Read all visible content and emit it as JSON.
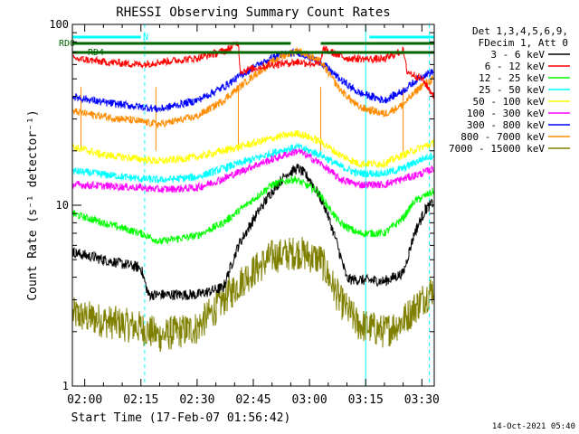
{
  "chart_data": {
    "type": "line",
    "title": "RHESSI Observing Summary Count Rates",
    "xlabel": "Start Time (17-Feb-07 01:56:42)",
    "ylabel": "Count Rate (s⁻¹ detector⁻¹)",
    "x_tick_labels": [
      "02:00",
      "02:15",
      "02:30",
      "02:45",
      "03:00",
      "03:15",
      "03:30"
    ],
    "x_range_minutes": [
      116.7,
      213.3
    ],
    "y_scale": "log",
    "ylim": [
      1,
      100
    ],
    "y_tick_labels": [
      "1",
      "10",
      "100"
    ],
    "footer_timestamp": "14-Oct-2021 05:40",
    "legend_header": [
      "Det 1,3,4,5,6,9,",
      "FDecim 1, Att 0"
    ],
    "flags": {
      "rd0_label": "RD0",
      "rd4_label": "RD4",
      "n_label": "N",
      "rd0_color": "#006600",
      "n_color": "#00ffff",
      "n_intervals": [
        [
          116.7,
          135
        ],
        [
          196,
          213.3
        ]
      ],
      "rd0_intervals": [
        [
          116.7,
          175
        ],
        [
          183,
          213.3
        ]
      ],
      "rd4_intervals": [
        [
          116.7,
          213.3
        ]
      ]
    },
    "boundaries": {
      "solid_cyan_minutes": [
        116.7,
        195
      ],
      "dashed_cyan_minutes": [
        136,
        212
      ],
      "solid_orange_minutes": [
        119,
        139,
        161,
        183,
        205
      ]
    },
    "series": [
      {
        "name": "3 - 6 keV",
        "color": "#000000",
        "control": [
          [
            116.7,
            5.5
          ],
          [
            125,
            5.0
          ],
          [
            135,
            4.5
          ],
          [
            137,
            3.2
          ],
          [
            150,
            3.2
          ],
          [
            157,
            3.5
          ],
          [
            161,
            6.0
          ],
          [
            166,
            9.0
          ],
          [
            170,
            12
          ],
          [
            174,
            15
          ],
          [
            177,
            16
          ],
          [
            180,
            14
          ],
          [
            184,
            10
          ],
          [
            187,
            6.5
          ],
          [
            190,
            3.9
          ],
          [
            200,
            3.8
          ],
          [
            205,
            4.2
          ],
          [
            208,
            7.0
          ],
          [
            211,
            9.5
          ],
          [
            213.3,
            10.5
          ]
        ]
      },
      {
        "name": "6 - 12 keV",
        "color": "#ff0000",
        "control": [
          [
            116.7,
            65
          ],
          [
            125,
            62
          ],
          [
            135,
            60
          ],
          [
            140,
            62
          ],
          [
            150,
            65
          ],
          [
            158,
            72
          ],
          [
            161,
            80
          ],
          [
            161.5,
            55
          ],
          [
            170,
            60
          ],
          [
            177,
            62
          ],
          [
            183,
            60
          ],
          [
            183.5,
            73
          ],
          [
            190,
            65
          ],
          [
            200,
            64
          ],
          [
            205,
            72
          ],
          [
            206,
            55
          ],
          [
            210,
            50
          ],
          [
            213.3,
            40
          ]
        ]
      },
      {
        "name": "12 - 25 keV",
        "color": "#00ff00",
        "control": [
          [
            116.7,
            9.0
          ],
          [
            125,
            8.0
          ],
          [
            135,
            7.0
          ],
          [
            140,
            6.3
          ],
          [
            150,
            6.8
          ],
          [
            157,
            8.0
          ],
          [
            163,
            10
          ],
          [
            170,
            13
          ],
          [
            176,
            14
          ],
          [
            182,
            12
          ],
          [
            188,
            8.0
          ],
          [
            193,
            7.0
          ],
          [
            200,
            7.0
          ],
          [
            205,
            8.5
          ],
          [
            208,
            10.5
          ],
          [
            213.3,
            12
          ]
        ]
      },
      {
        "name": "25 - 50 keV",
        "color": "#00ffff",
        "control": [
          [
            116.7,
            15.5
          ],
          [
            125,
            14.8
          ],
          [
            135,
            14.0
          ],
          [
            140,
            13.8
          ],
          [
            150,
            14.3
          ],
          [
            157,
            16
          ],
          [
            165,
            18
          ],
          [
            172,
            20
          ],
          [
            177,
            21
          ],
          [
            183,
            19
          ],
          [
            188,
            16.5
          ],
          [
            193,
            15
          ],
          [
            200,
            15
          ],
          [
            205,
            16
          ],
          [
            210,
            18
          ],
          [
            213.3,
            19
          ]
        ]
      },
      {
        "name": "50 - 100 keV",
        "color": "#ffff00",
        "shade": "#cccc00",
        "control": [
          [
            116.7,
            21
          ],
          [
            125,
            19
          ],
          [
            135,
            18
          ],
          [
            140,
            17.5
          ],
          [
            150,
            18.5
          ],
          [
            157,
            20
          ],
          [
            165,
            22
          ],
          [
            172,
            24
          ],
          [
            177,
            25
          ],
          [
            183,
            22.5
          ],
          [
            188,
            19
          ],
          [
            193,
            17
          ],
          [
            200,
            17
          ],
          [
            205,
            19
          ],
          [
            210,
            21
          ],
          [
            213.3,
            22
          ]
        ]
      },
      {
        "name": "100 - 300 keV",
        "color": "#ff00ff",
        "control": [
          [
            116.7,
            13
          ],
          [
            125,
            12.8
          ],
          [
            135,
            12.5
          ],
          [
            140,
            12.2
          ],
          [
            150,
            12.5
          ],
          [
            157,
            14
          ],
          [
            165,
            16.5
          ],
          [
            172,
            18.5
          ],
          [
            177,
            20
          ],
          [
            183,
            17
          ],
          [
            188,
            14
          ],
          [
            193,
            13
          ],
          [
            200,
            13
          ],
          [
            205,
            14
          ],
          [
            210,
            15
          ],
          [
            213.3,
            16
          ]
        ]
      },
      {
        "name": "300 - 800 keV",
        "color": "#0000ff",
        "control": [
          [
            116.7,
            40
          ],
          [
            125,
            37
          ],
          [
            135,
            35
          ],
          [
            140,
            34
          ],
          [
            150,
            38
          ],
          [
            157,
            45
          ],
          [
            165,
            58
          ],
          [
            172,
            68
          ],
          [
            177,
            70
          ],
          [
            183,
            62
          ],
          [
            188,
            50
          ],
          [
            193,
            42
          ],
          [
            200,
            38
          ],
          [
            205,
            43
          ],
          [
            210,
            52
          ],
          [
            213.3,
            55
          ]
        ]
      },
      {
        "name": "800 - 7000 keV",
        "color": "#ff8c00",
        "shade": "#e68000",
        "control": [
          [
            116.7,
            33
          ],
          [
            125,
            31
          ],
          [
            135,
            29
          ],
          [
            140,
            28
          ],
          [
            150,
            31
          ],
          [
            157,
            38
          ],
          [
            165,
            52
          ],
          [
            172,
            66
          ],
          [
            177,
            72
          ],
          [
            183,
            62
          ],
          [
            188,
            44
          ],
          [
            193,
            35
          ],
          [
            200,
            32
          ],
          [
            205,
            36
          ],
          [
            210,
            46
          ],
          [
            213.3,
            50
          ]
        ]
      },
      {
        "name": "7000 - 15000 keV",
        "color": "#808000",
        "control": [
          [
            116.7,
            2.5
          ],
          [
            125,
            2.3
          ],
          [
            135,
            2.1
          ],
          [
            140,
            1.9
          ],
          [
            150,
            2.1
          ],
          [
            157,
            3.0
          ],
          [
            163,
            4.0
          ],
          [
            170,
            5.2
          ],
          [
            177,
            5.5
          ],
          [
            183,
            5.0
          ],
          [
            188,
            3.0
          ],
          [
            193,
            2.2
          ],
          [
            200,
            2.0
          ],
          [
            205,
            2.3
          ],
          [
            210,
            3.0
          ],
          [
            213.3,
            3.5
          ]
        ]
      }
    ]
  }
}
